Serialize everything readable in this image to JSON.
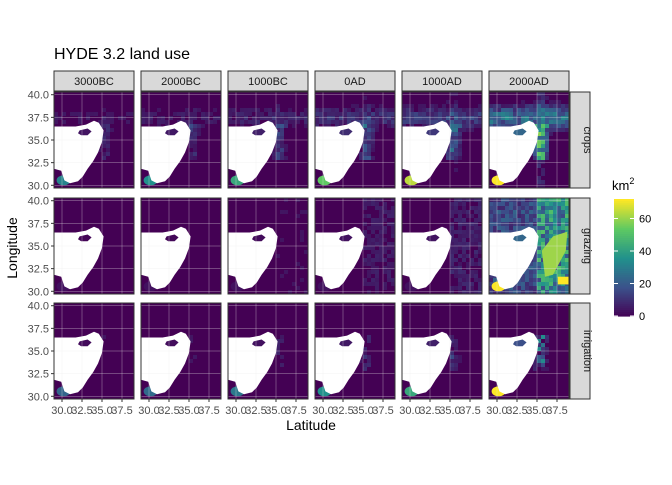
{
  "chart_data": {
    "type": "heatmap",
    "title": "HYDE 3.2 land use",
    "xlabel": "Latitude",
    "ylabel": "Longitude",
    "columns": [
      "3000BC",
      "2000BC",
      "1000BC",
      "0AD",
      "1000AD",
      "2000AD"
    ],
    "rows": [
      "crops",
      "grazing",
      "irrigation"
    ],
    "x_ticks": [
      "30.0",
      "32.5",
      "35.0",
      "37.5"
    ],
    "x_tick_values": [
      30.0,
      32.5,
      35.0,
      37.5
    ],
    "y_ticks": [
      "40.0",
      "37.5",
      "35.0",
      "32.5",
      "30.0"
    ],
    "y_tick_values": [
      40.0,
      37.5,
      35.0,
      32.5,
      30.0
    ],
    "xlim": [
      29.0,
      39.0
    ],
    "ylim": [
      29.7,
      40.3
    ],
    "grid": true,
    "legend": {
      "title": "km",
      "title_superscript": "2",
      "ticks": [
        "0",
        "20",
        "40",
        "60"
      ],
      "tick_values": [
        0,
        20,
        40,
        60
      ],
      "range": [
        0,
        72
      ],
      "placement": "right"
    },
    "colorscale": [
      "#440154",
      "#3b528b",
      "#21918c",
      "#5ec962",
      "#fde725"
    ],
    "intensity": {
      "crops": [
        0.1,
        0.12,
        0.16,
        0.22,
        0.28,
        0.55
      ],
      "grazing": [
        0.02,
        0.03,
        0.05,
        0.08,
        0.1,
        0.55
      ],
      "irrigation": [
        0.05,
        0.06,
        0.08,
        0.12,
        0.16,
        0.4
      ]
    }
  },
  "colors": {
    "strip_fill": "#d9d9d9",
    "strip_border": "#333333",
    "panel_border": "#333333",
    "grid": "#ebebeb",
    "land_base": "#440154",
    "sea": "#ffffff"
  }
}
